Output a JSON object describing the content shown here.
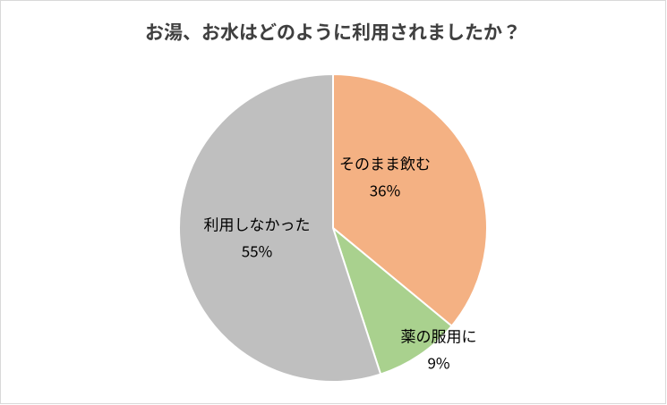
{
  "chart_data": {
    "type": "pie",
    "title": "お湯、お水はどのように利用されましたか？",
    "categories": [
      "そのまま飲む",
      "薬の服用に",
      "利用しなかった"
    ],
    "values": [
      36,
      9,
      55
    ],
    "value_labels": [
      "36%",
      "9%",
      "55%"
    ],
    "colors": [
      "#f4b183",
      "#a9d18e",
      "#bfbfbf"
    ]
  }
}
